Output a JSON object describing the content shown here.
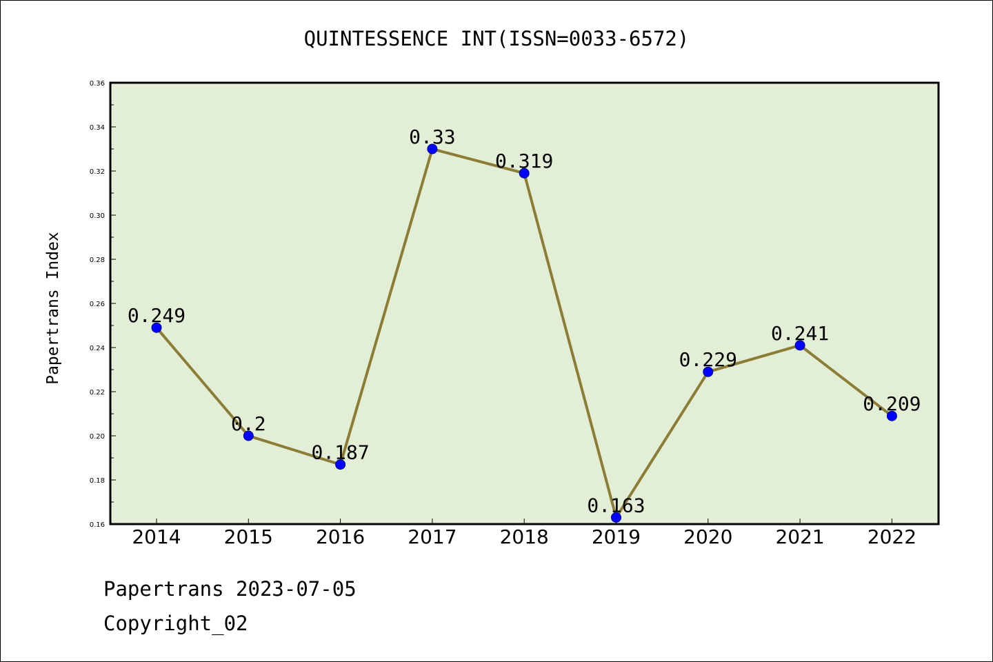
{
  "chart_data": {
    "type": "line",
    "title": "QUINTESSENCE INT(ISSN=0033-6572)",
    "xlabel": "",
    "ylabel": "Papertrans Index",
    "categories": [
      "2014",
      "2015",
      "2016",
      "2017",
      "2018",
      "2019",
      "2020",
      "2021",
      "2022"
    ],
    "series": [
      {
        "values": [
          0.249,
          0.2,
          0.187,
          0.33,
          0.319,
          0.163,
          0.229,
          0.241,
          0.209
        ]
      }
    ],
    "data_labels": [
      "0.249",
      "0.2",
      "0.187",
      "0.33",
      "0.319",
      "0.163",
      "0.229",
      "0.241",
      "0.209"
    ],
    "ylim": [
      0.16,
      0.36
    ],
    "yticks": [
      "0.16",
      "0.18",
      "0.20",
      "0.22",
      "0.24",
      "0.26",
      "0.28",
      "0.30",
      "0.32",
      "0.34",
      "0.36"
    ],
    "grid": false,
    "colors": {
      "plot_background": "#e2efd6",
      "line": "#8b7d36",
      "marker": "#0000ff"
    }
  },
  "footer": {
    "line1": "Papertrans 2023-07-05",
    "line2": "Copyright_02"
  }
}
